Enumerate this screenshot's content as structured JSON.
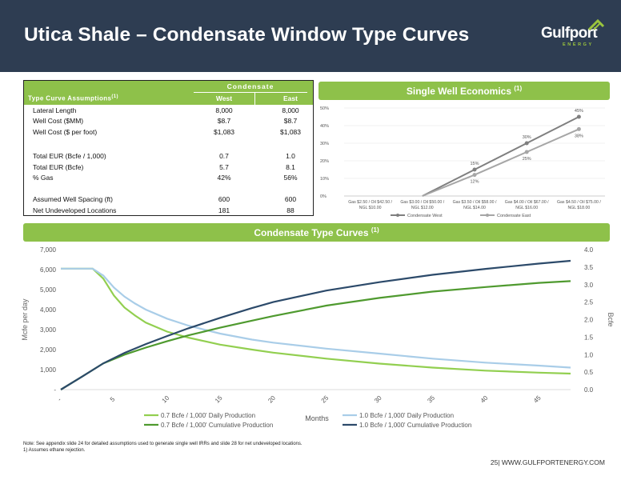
{
  "header": {
    "title": "Utica Shale – Condensate Window Type Curves",
    "logo_text": "Gulfport",
    "logo_sub": "ENERGY",
    "bg_color": "#2e3d52",
    "accent_color": "#8ec14a"
  },
  "assumptions": {
    "group_label": "Condensate",
    "title_label": "Type Curve Assumptions",
    "title_sup": "(1)",
    "col_west": "West",
    "col_east": "East",
    "rows": [
      {
        "label": "Lateral Length",
        "west": "8,000",
        "east": "8,000"
      },
      {
        "label": "Well Cost ($MM)",
        "west": "$8.7",
        "east": "$8.7"
      },
      {
        "label": "Well Cost ($ per foot)",
        "west": "$1,083",
        "east": "$1,083"
      },
      {
        "label": "Total EUR (Bcfe / 1,000)",
        "west": "0.7",
        "east": "1.0"
      },
      {
        "label": "Total EUR (Bcfe)",
        "west": "5.7",
        "east": "8.1"
      },
      {
        "label": "% Gas",
        "west": "42%",
        "east": "56%"
      },
      {
        "label": "Assumed Well Spacing (ft)",
        "west": "600",
        "east": "600"
      },
      {
        "label": "Net Undeveloped Locations",
        "west": "181",
        "east": "88"
      }
    ]
  },
  "economics": {
    "title": "Single Well Economics",
    "title_sup": "(1)"
  },
  "type_curves": {
    "title": "Condensate Type Curves",
    "title_sup": "(1)"
  },
  "chart_data": [
    {
      "type": "line",
      "categories": [
        [
          "Gas $2.50 / Oil $42.50 /",
          "NGL $10.00"
        ],
        [
          "Gas $3.00 / Oil $50.00 /",
          "NGL $12.00"
        ],
        [
          "Gas $3.50 / Oil $58.00 /",
          "NGL $14.00"
        ],
        [
          "Gas $4.00 / Oil $67.00 /",
          "NGL $16.00"
        ],
        [
          "Gas $4.50 / Oil $75.00 /",
          "NGL $18.00"
        ]
      ],
      "yticks": [
        "0%",
        "10%",
        "20%",
        "30%",
        "40%",
        "50%"
      ],
      "ylim": [
        0,
        50
      ],
      "series": [
        {
          "name": "Condensate West",
          "values": [
            null,
            null,
            15,
            30,
            45
          ],
          "labels": [
            "",
            "",
            "15%",
            "30%",
            "45%"
          ],
          "color": "#7f7f7f"
        },
        {
          "name": "Condensate East",
          "values": [
            null,
            null,
            12,
            25,
            38
          ],
          "labels": [
            "",
            "",
            "12%",
            "25%",
            "38%"
          ],
          "color": "#a6a6a6"
        }
      ]
    },
    {
      "type": "line",
      "xlabel": "Months",
      "ylabel": "Mcfe per day",
      "y2label": "Bcfe",
      "xticks": [
        "-",
        "5",
        "10",
        "15",
        "20",
        "25",
        "30",
        "35",
        "40",
        "45"
      ],
      "xlim": [
        0,
        48
      ],
      "ylim": [
        0,
        7000
      ],
      "y2lim": [
        0,
        4.0
      ],
      "yticks": [
        "-",
        "1,000",
        "2,000",
        "3,000",
        "4,000",
        "5,000",
        "6,000",
        "7,000"
      ],
      "y2ticks": [
        "0.0",
        "0.5",
        "1.0",
        "1.5",
        "2.0",
        "2.5",
        "3.0",
        "3.5",
        "4.0"
      ],
      "series": [
        {
          "name": "0.7 Bcfe / 1,000' Daily Production",
          "axis": "left",
          "color": "#92cf50",
          "x": [
            0,
            1,
            2,
            3,
            4,
            5,
            6,
            7,
            8,
            10,
            12,
            15,
            18,
            20,
            25,
            30,
            35,
            40,
            45,
            48
          ],
          "y": [
            6050,
            6050,
            6050,
            6050,
            5550,
            4700,
            4100,
            3700,
            3350,
            2900,
            2600,
            2250,
            2000,
            1850,
            1550,
            1300,
            1100,
            950,
            850,
            800
          ]
        },
        {
          "name": "1.0 Bcfe / 1,000' Daily Production",
          "axis": "left",
          "color": "#a9cde8",
          "x": [
            0,
            1,
            2,
            3,
            4,
            5,
            6,
            7,
            8,
            10,
            12,
            15,
            18,
            20,
            25,
            30,
            35,
            40,
            45,
            48
          ],
          "y": [
            6050,
            6050,
            6050,
            6050,
            5700,
            5100,
            4650,
            4300,
            4000,
            3550,
            3200,
            2800,
            2500,
            2350,
            2050,
            1800,
            1550,
            1350,
            1200,
            1100
          ]
        },
        {
          "name": "0.7 Bcfe / 1,000' Cumulative Production",
          "axis": "right",
          "color": "#4f9a2f",
          "x": [
            0,
            2,
            4,
            6,
            8,
            10,
            12,
            15,
            18,
            20,
            25,
            30,
            35,
            40,
            45,
            48
          ],
          "y": [
            0.0,
            0.37,
            0.75,
            1.0,
            1.2,
            1.38,
            1.55,
            1.77,
            1.97,
            2.1,
            2.4,
            2.62,
            2.8,
            2.93,
            3.05,
            3.1
          ]
        },
        {
          "name": "1.0 Bcfe / 1,000' Cumulative Production",
          "axis": "right",
          "color": "#2c4a6a",
          "x": [
            0,
            2,
            4,
            6,
            8,
            10,
            12,
            15,
            18,
            20,
            25,
            30,
            35,
            40,
            45,
            48
          ],
          "y": [
            0.0,
            0.37,
            0.75,
            1.05,
            1.3,
            1.53,
            1.75,
            2.05,
            2.33,
            2.5,
            2.83,
            3.07,
            3.28,
            3.45,
            3.6,
            3.68
          ]
        }
      ]
    }
  ],
  "notes": {
    "line1": "Note: See appendix slide 24 for detailed assumptions used to generate single well IRRs and slide 28 for net undeveloped locations.",
    "line2": "1)      Assumes ethane rejection."
  },
  "footer": {
    "page": "25",
    "url": "| WWW.GULFPORTENERGY.COM"
  }
}
